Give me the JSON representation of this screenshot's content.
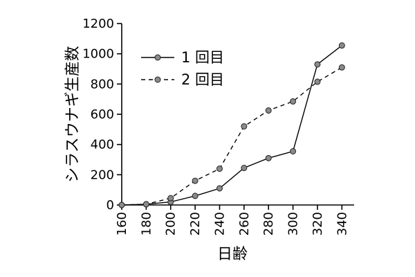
{
  "chart_data": {
    "type": "line",
    "xlabel": "日齢",
    "ylabel": "シラスウナギ生産数",
    "x": [
      160,
      180,
      200,
      220,
      240,
      260,
      280,
      300,
      320,
      340
    ],
    "xlim": [
      160,
      350
    ],
    "ylim": [
      0,
      1200
    ],
    "xticks": [
      "160",
      "180",
      "200",
      "220",
      "240",
      "260",
      "280",
      "300",
      "320",
      "340"
    ],
    "yticks": [
      "0",
      "200",
      "400",
      "600",
      "800",
      "1000",
      "1200"
    ],
    "legend_position": "upper-left",
    "grid": false,
    "series": [
      {
        "name": "1 回目",
        "line_style": "solid",
        "values": [
          0,
          5,
          20,
          60,
          110,
          245,
          310,
          355,
          930,
          1055
        ]
      },
      {
        "name": "2 回目",
        "line_style": "dashed",
        "values": [
          0,
          5,
          45,
          160,
          240,
          520,
          625,
          685,
          815,
          910
        ]
      }
    ]
  },
  "colors": {
    "marker_fill": "#8a8a8a",
    "line": "#000000",
    "first_point": "#000000"
  }
}
